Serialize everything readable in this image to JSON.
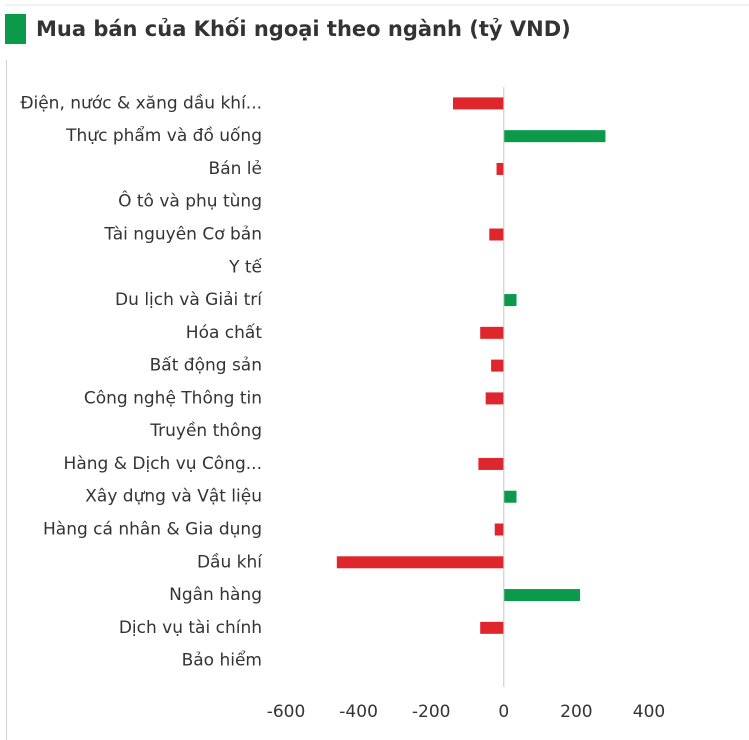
{
  "chart_data": {
    "type": "bar",
    "orientation": "horizontal",
    "title": "Mua bán của Khối ngoại theo ngành (tỷ VND)",
    "categories": [
      "Điện, nước & xăng dầu khí...",
      "Thực phẩm và đồ uống",
      "Bán lẻ",
      "Ô tô và phụ tùng",
      "Tài nguyên Cơ bản",
      "Y tế",
      "Du lịch và Giải trí",
      "Hóa chất",
      "Bất động sản",
      "Công nghệ Thông tin",
      "Truyền thông",
      "Hàng & Dịch vụ Công...",
      "Xây dựng và Vật liệu",
      "Hàng cá nhân & Gia dụng",
      "Dầu khí",
      "Ngân hàng",
      "Dịch vụ tài chính",
      "Bảo hiểm"
    ],
    "values": [
      -140,
      280,
      -20,
      0,
      -40,
      0,
      35,
      -65,
      -35,
      -50,
      0,
      -70,
      35,
      -25,
      -460,
      210,
      -65,
      0
    ],
    "positive_color": "#0a9a4a",
    "negative_color": "#e0262d",
    "xlim": [
      -600,
      400
    ],
    "xticks": [
      -600,
      -400,
      -200,
      0,
      200,
      400
    ],
    "grid": false
  }
}
